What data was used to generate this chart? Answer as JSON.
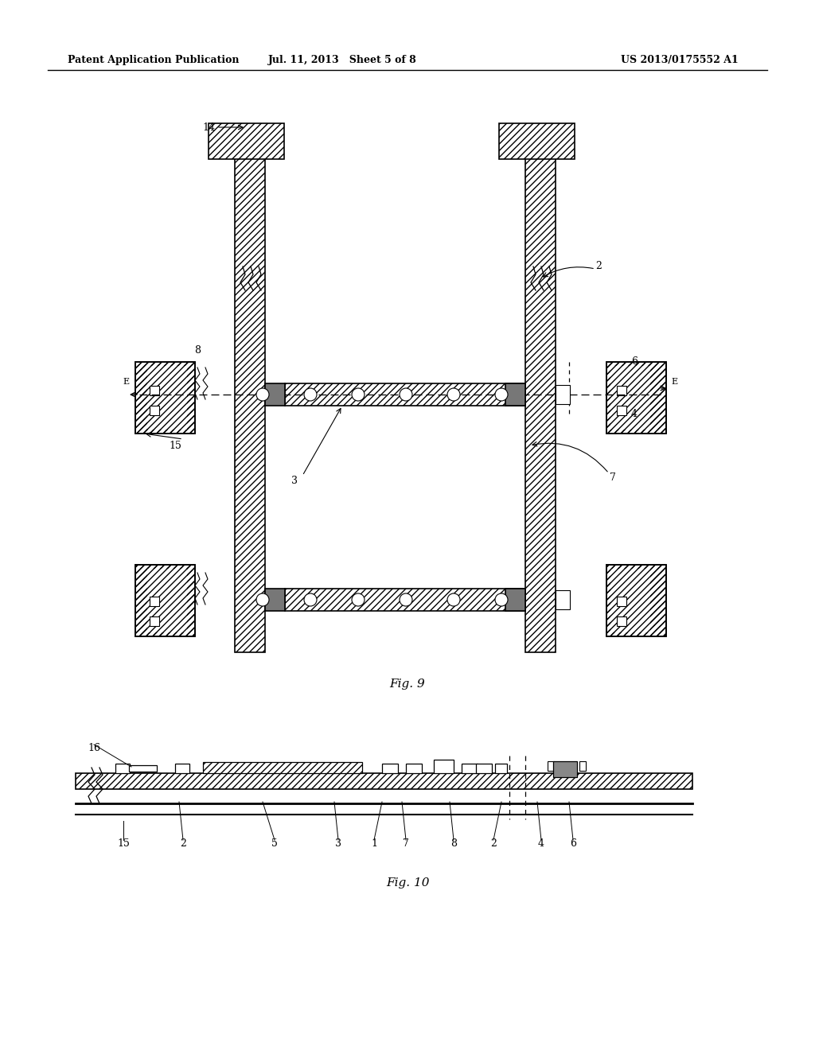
{
  "bg_color": "#ffffff",
  "header_left": "Patent Application Publication",
  "header_mid": "Jul. 11, 2013   Sheet 5 of 8",
  "header_right": "US 2013/0175552 A1",
  "fig9_label": "Fig. 9",
  "fig10_label": "Fig. 10",
  "hatch_color": "#000000",
  "hatch_pattern": "////",
  "dark_fill": "#888888",
  "line_color": "#000000"
}
